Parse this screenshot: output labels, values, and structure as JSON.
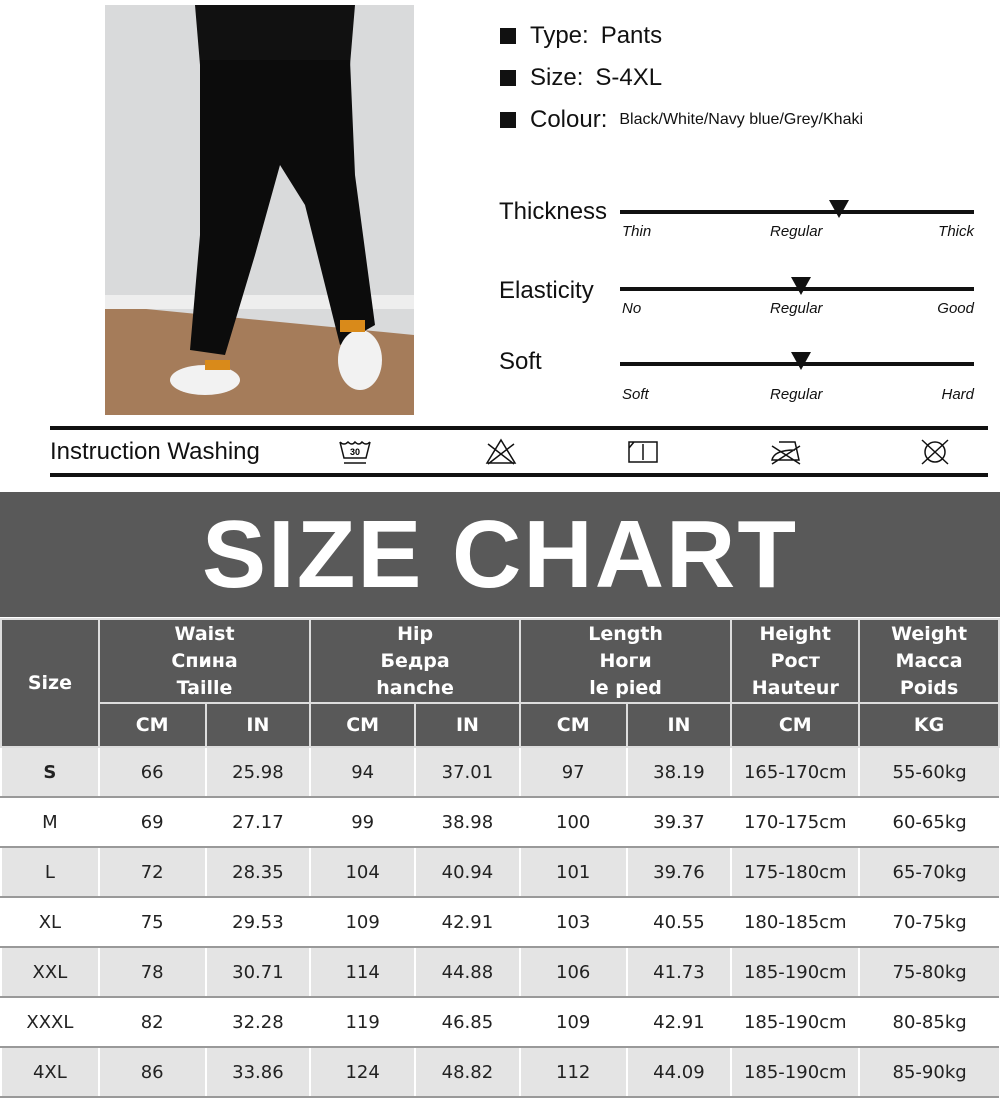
{
  "specs": [
    {
      "label": "Type:",
      "value": "Pants"
    },
    {
      "label": "Size:",
      "value": "S-4XL"
    },
    {
      "label": "Colour:",
      "value": "Black/White/Navy blue/Grey/Khaki"
    }
  ],
  "scales": [
    {
      "label": "Thickness",
      "ticks": [
        "Thin",
        "Regular",
        "Thick"
      ],
      "level": 0.62
    },
    {
      "label": "Elasticity",
      "ticks": [
        "No",
        "Regular",
        "Good"
      ],
      "level": 0.51
    },
    {
      "label": "Soft",
      "ticks": [
        "Soft",
        "Regular",
        "Hard"
      ],
      "level": 0.51
    }
  ],
  "washing": {
    "label": "Instruction Washing",
    "icons": [
      "wash-30-icon",
      "do-not-bleach-icon",
      "dry-flat-icon",
      "do-not-iron-icon",
      "do-not-tumble-dry-icon"
    ],
    "wash_temp": "30"
  },
  "banner": "SIZE CHART",
  "table": {
    "size_header": "Size",
    "groups": [
      [
        "Waist",
        "Спина",
        "Taille"
      ],
      [
        "Hip",
        "Бедра",
        "hanche"
      ],
      [
        "Length",
        "Ноги",
        "le pied"
      ],
      [
        "Height",
        "Рост",
        "Hauteur"
      ],
      [
        "Weight",
        "Масса",
        "Poids"
      ]
    ],
    "units": [
      "CM",
      "IN",
      "CM",
      "IN",
      "CM",
      "IN",
      "CM",
      "KG"
    ],
    "rows": [
      [
        "S",
        "66",
        "25.98",
        "94",
        "37.01",
        "97",
        "38.19",
        "165-170cm",
        "55-60kg"
      ],
      [
        "M",
        "69",
        "27.17",
        "99",
        "38.98",
        "100",
        "39.37",
        "170-175cm",
        "60-65kg"
      ],
      [
        "L",
        "72",
        "28.35",
        "104",
        "40.94",
        "101",
        "39.76",
        "175-180cm",
        "65-70kg"
      ],
      [
        "XL",
        "75",
        "29.53",
        "109",
        "42.91",
        "103",
        "40.55",
        "180-185cm",
        "70-75kg"
      ],
      [
        "XXL",
        "78",
        "30.71",
        "114",
        "44.88",
        "106",
        "41.73",
        "185-190cm",
        "75-80kg"
      ],
      [
        "XXXL",
        "82",
        "32.28",
        "119",
        "46.85",
        "109",
        "42.91",
        "185-190cm",
        "80-85kg"
      ],
      [
        "4XL",
        "86",
        "33.86",
        "124",
        "48.82",
        "112",
        "44.09",
        "185-190cm",
        "85-90kg"
      ]
    ]
  }
}
